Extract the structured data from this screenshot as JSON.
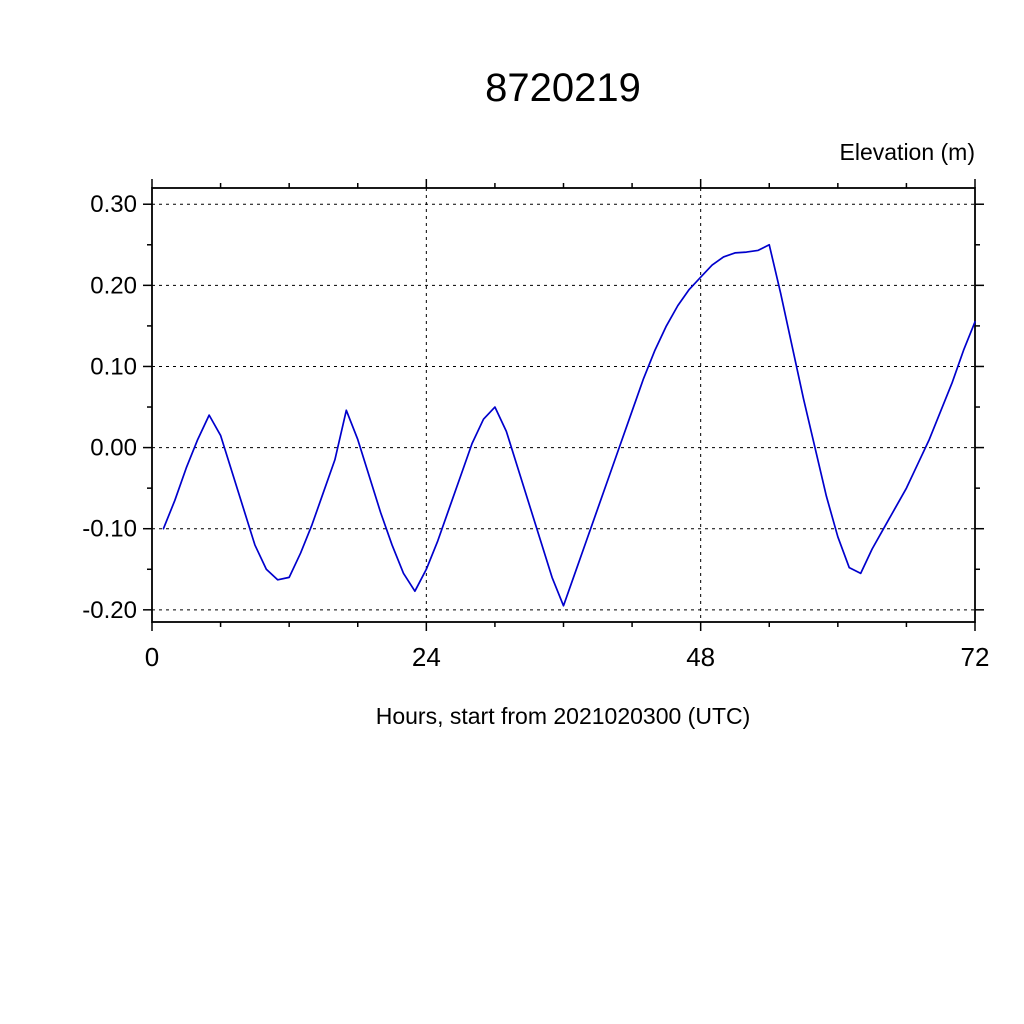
{
  "page": {
    "background": "#ffffff",
    "text_color": "#000000"
  },
  "chart_data": {
    "type": "line",
    "title": "8720219",
    "ylabel": "Elevation (m)",
    "xlabel": "Hours, start from 2021020300 (UTC)",
    "xlim": [
      0,
      72
    ],
    "ylim": [
      -0.2,
      0.3
    ],
    "xticks": [
      0,
      24,
      48,
      72
    ],
    "xtick_labels": [
      "0",
      "24",
      "48",
      "72"
    ],
    "x_minor_ticks": [
      6,
      12,
      18,
      30,
      36,
      42,
      54,
      60,
      66
    ],
    "yticks": [
      -0.2,
      -0.1,
      0.0,
      0.1,
      0.2,
      0.3
    ],
    "ytick_labels": [
      "-0.20",
      "-0.10",
      "0.00",
      "0.10",
      "0.20",
      "0.30"
    ],
    "y_minor_ticks": [
      -0.15,
      -0.05,
      0.05,
      0.15,
      0.25
    ],
    "grid": "dashed",
    "legend": "none",
    "line_color": "#0000cc",
    "series": [
      {
        "name": "elevation",
        "x": [
          1,
          2,
          3,
          4,
          5,
          6,
          7,
          8,
          9,
          10,
          11,
          12,
          13,
          14,
          15,
          16,
          17,
          18,
          19,
          20,
          21,
          22,
          23,
          24,
          25,
          26,
          27,
          28,
          29,
          30,
          31,
          32,
          33,
          34,
          35,
          36,
          37,
          38,
          39,
          40,
          41,
          42,
          43,
          44,
          45,
          46,
          47,
          48,
          49,
          50,
          51,
          52,
          53,
          54,
          55,
          56,
          57,
          58,
          59,
          60,
          61,
          62,
          63,
          64,
          65,
          66,
          67,
          68,
          69,
          70,
          71,
          72
        ],
        "y": [
          -0.1,
          -0.065,
          -0.025,
          0.01,
          0.04,
          0.015,
          -0.03,
          -0.075,
          -0.12,
          -0.15,
          -0.163,
          -0.16,
          -0.13,
          -0.095,
          -0.055,
          -0.015,
          0.046,
          0.01,
          -0.035,
          -0.08,
          -0.12,
          -0.155,
          -0.177,
          -0.15,
          -0.115,
          -0.075,
          -0.035,
          0.005,
          0.035,
          0.05,
          0.02,
          -0.025,
          -0.07,
          -0.115,
          -0.16,
          -0.195,
          -0.155,
          -0.115,
          -0.075,
          -0.035,
          0.005,
          0.045,
          0.085,
          0.12,
          0.15,
          0.175,
          0.195,
          0.21,
          0.225,
          0.235,
          0.24,
          0.241,
          0.243,
          0.25,
          0.19,
          0.125,
          0.06,
          0.0,
          -0.06,
          -0.11,
          -0.148,
          -0.155,
          -0.125,
          -0.1,
          -0.075,
          -0.05,
          -0.02,
          0.01,
          0.045,
          0.08,
          0.12,
          0.155
        ]
      }
    ]
  }
}
